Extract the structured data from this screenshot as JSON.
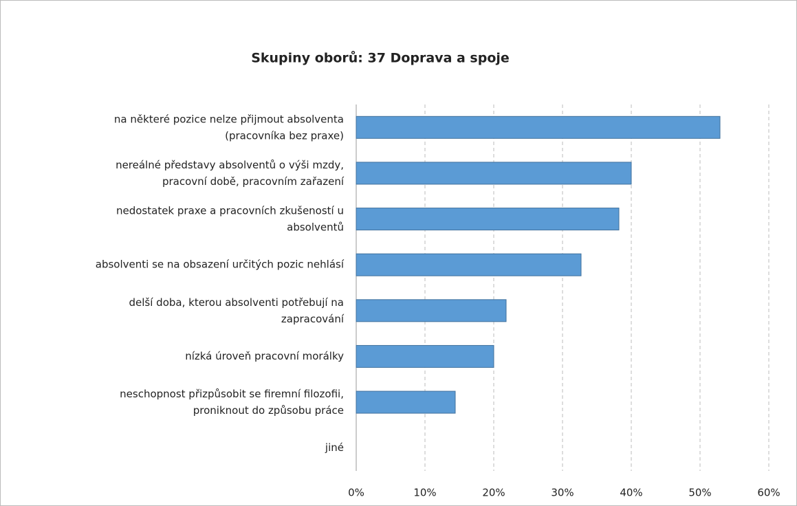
{
  "chart_data": {
    "type": "barh",
    "title": "Skupiny oborů: 37 Doprava a spoje",
    "categories": [
      "na některé pozice nelze přijmout absolventa\n(pracovníka bez praxe)",
      "nereálné představy absolventů o výši mzdy,\npracovní době, pracovním zařazení",
      "nedostatek praxe a pracovních zkušeností u\nabsolventů",
      "absolventi se na obsazení určitých pozic nehlásí",
      "delší doba, kterou absolventi potřebují na\nzapracování",
      "nízká úroveň pracovní morálky",
      "neschopnost přizpůsobit se firemní filozofii,\nproniknout do způsobu práce",
      "jiné"
    ],
    "values": [
      52.9,
      40.0,
      38.2,
      32.7,
      21.8,
      20.0,
      14.4,
      0
    ],
    "color": "#5b9bd5",
    "xlim": [
      0,
      60
    ],
    "xticks": [
      {
        "value": 0,
        "label": "0%"
      },
      {
        "value": 10,
        "label": "10%"
      },
      {
        "value": 20,
        "label": "20%"
      },
      {
        "value": 30,
        "label": "30%"
      },
      {
        "value": 40,
        "label": "40%"
      },
      {
        "value": 50,
        "label": "50%"
      },
      {
        "value": 60,
        "label": "60%"
      }
    ],
    "grid": true
  }
}
